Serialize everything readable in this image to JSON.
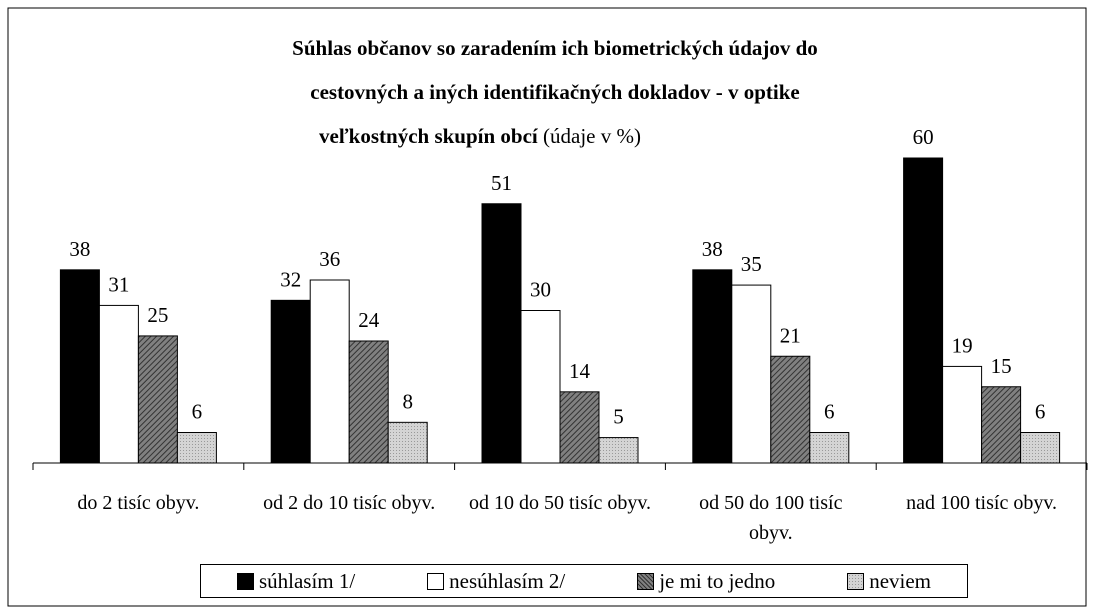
{
  "chart_data": {
    "type": "bar",
    "title": [
      "Súhlas občanov so zaradením ich biometrických údajov do",
      "cestovných a iných identifikačných dokladov - v optike",
      "veľkostných skupín obcí"
    ],
    "subtitle": "(údaje v %)",
    "categories": [
      "do 2 tisíc obyv.",
      "od 2 do 10 tisíc obyv.",
      "od 10 do 50 tisíc obyv.",
      "od 50 do 100 tisíc obyv.",
      "nad 100 tisíc obyv."
    ],
    "series": [
      {
        "name": "súhlasím 1/",
        "color": "#000000",
        "values": [
          38,
          32,
          51,
          38,
          60
        ]
      },
      {
        "name": "nesúhlasím 2/",
        "color": "#ffffff",
        "values": [
          31,
          36,
          30,
          35,
          19
        ]
      },
      {
        "name": "je mi to jedno",
        "color": "#808080",
        "values": [
          25,
          24,
          14,
          21,
          15
        ]
      },
      {
        "name": "neviem",
        "color": "#d4d4d4",
        "values": [
          6,
          8,
          5,
          6,
          6
        ]
      }
    ],
    "ylim": [
      0,
      60
    ],
    "legend": "bottom"
  }
}
